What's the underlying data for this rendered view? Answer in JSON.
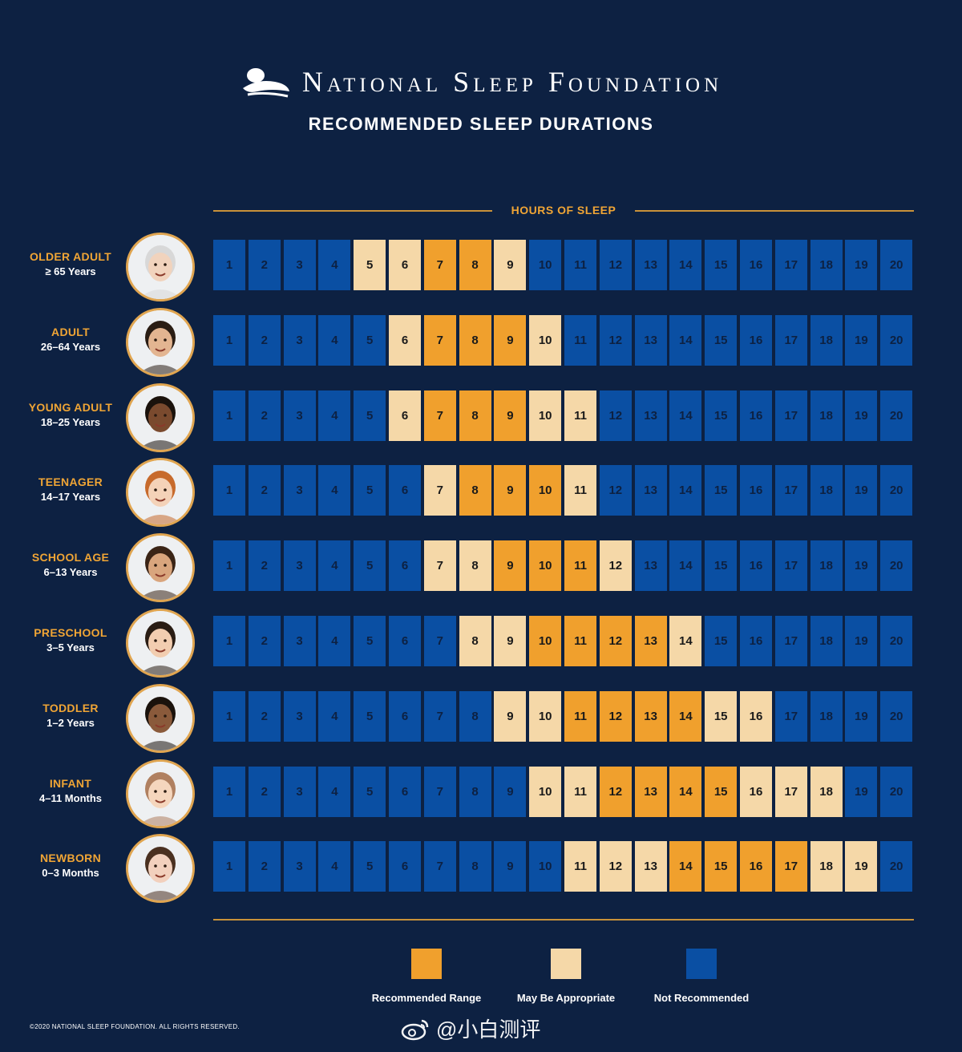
{
  "header": {
    "org_name": "National Sleep Foundation",
    "subtitle": "RECOMMENDED SLEEP DURATIONS"
  },
  "colors": {
    "background": "#0d2142",
    "recommended": "#f0a02d",
    "may_be_appropriate": "#f5d8a8",
    "not_recommended": "#0a4fa3",
    "accent": "#f0a535",
    "divider": "#c9923a"
  },
  "chart_data": {
    "type": "heatmap",
    "title": "RECOMMENDED SLEEP DURATIONS",
    "xlabel": "HOURS OF SLEEP",
    "hours": [
      1,
      2,
      3,
      4,
      5,
      6,
      7,
      8,
      9,
      10,
      11,
      12,
      13,
      14,
      15,
      16,
      17,
      18,
      19,
      20
    ],
    "legend": [
      {
        "key": "R",
        "label": "Recommended Range",
        "color": "#f0a02d"
      },
      {
        "key": "M",
        "label": "May Be Appropriate",
        "color": "#f5d8a8"
      },
      {
        "key": "N",
        "label": "Not Recommended",
        "color": "#0a4fa3"
      }
    ],
    "groups": [
      {
        "name": "OLDER ADULT",
        "range": "≥ 65 Years",
        "icon": "older-adult-portrait",
        "recommended": [
          7,
          8
        ],
        "may_be_appropriate": [
          5,
          6,
          9
        ]
      },
      {
        "name": "ADULT",
        "range": "26–64 Years",
        "icon": "adult-portrait",
        "recommended": [
          7,
          8,
          9
        ],
        "may_be_appropriate": [
          6,
          10
        ]
      },
      {
        "name": "YOUNG ADULT",
        "range": "18–25 Years",
        "icon": "young-adult-portrait",
        "recommended": [
          7,
          8,
          9
        ],
        "may_be_appropriate": [
          6,
          10,
          11
        ]
      },
      {
        "name": "TEENAGER",
        "range": "14–17 Years",
        "icon": "teenager-portrait",
        "recommended": [
          8,
          9,
          10
        ],
        "may_be_appropriate": [
          7,
          11
        ]
      },
      {
        "name": "SCHOOL AGE",
        "range": "6–13 Years",
        "icon": "school-age-portrait",
        "recommended": [
          9,
          10,
          11
        ],
        "may_be_appropriate": [
          7,
          8,
          12
        ]
      },
      {
        "name": "PRESCHOOL",
        "range": "3–5 Years",
        "icon": "preschool-portrait",
        "recommended": [
          10,
          11,
          12,
          13
        ],
        "may_be_appropriate": [
          8,
          9,
          14
        ]
      },
      {
        "name": "TODDLER",
        "range": "1–2 Years",
        "icon": "toddler-portrait",
        "recommended": [
          11,
          12,
          13,
          14
        ],
        "may_be_appropriate": [
          9,
          10,
          15,
          16
        ]
      },
      {
        "name": "INFANT",
        "range": "4–11 Months",
        "icon": "infant-portrait",
        "recommended": [
          12,
          13,
          14,
          15
        ],
        "may_be_appropriate": [
          10,
          11,
          16,
          17,
          18
        ]
      },
      {
        "name": "NEWBORN",
        "range": "0–3 Months",
        "icon": "newborn-portrait",
        "recommended": [
          14,
          15,
          16,
          17
        ],
        "may_be_appropriate": [
          11,
          12,
          13,
          18,
          19
        ]
      }
    ]
  },
  "legend_labels": {
    "recommended": "Recommended Range",
    "may_be_appropriate": "May Be Appropriate",
    "not_recommended": "Not Recommended"
  },
  "footer": {
    "copyright": "©2020 NATIONAL SLEEP FOUNDATION. ALL RIGHTS RESERVED.",
    "watermark": "@小白测评"
  }
}
